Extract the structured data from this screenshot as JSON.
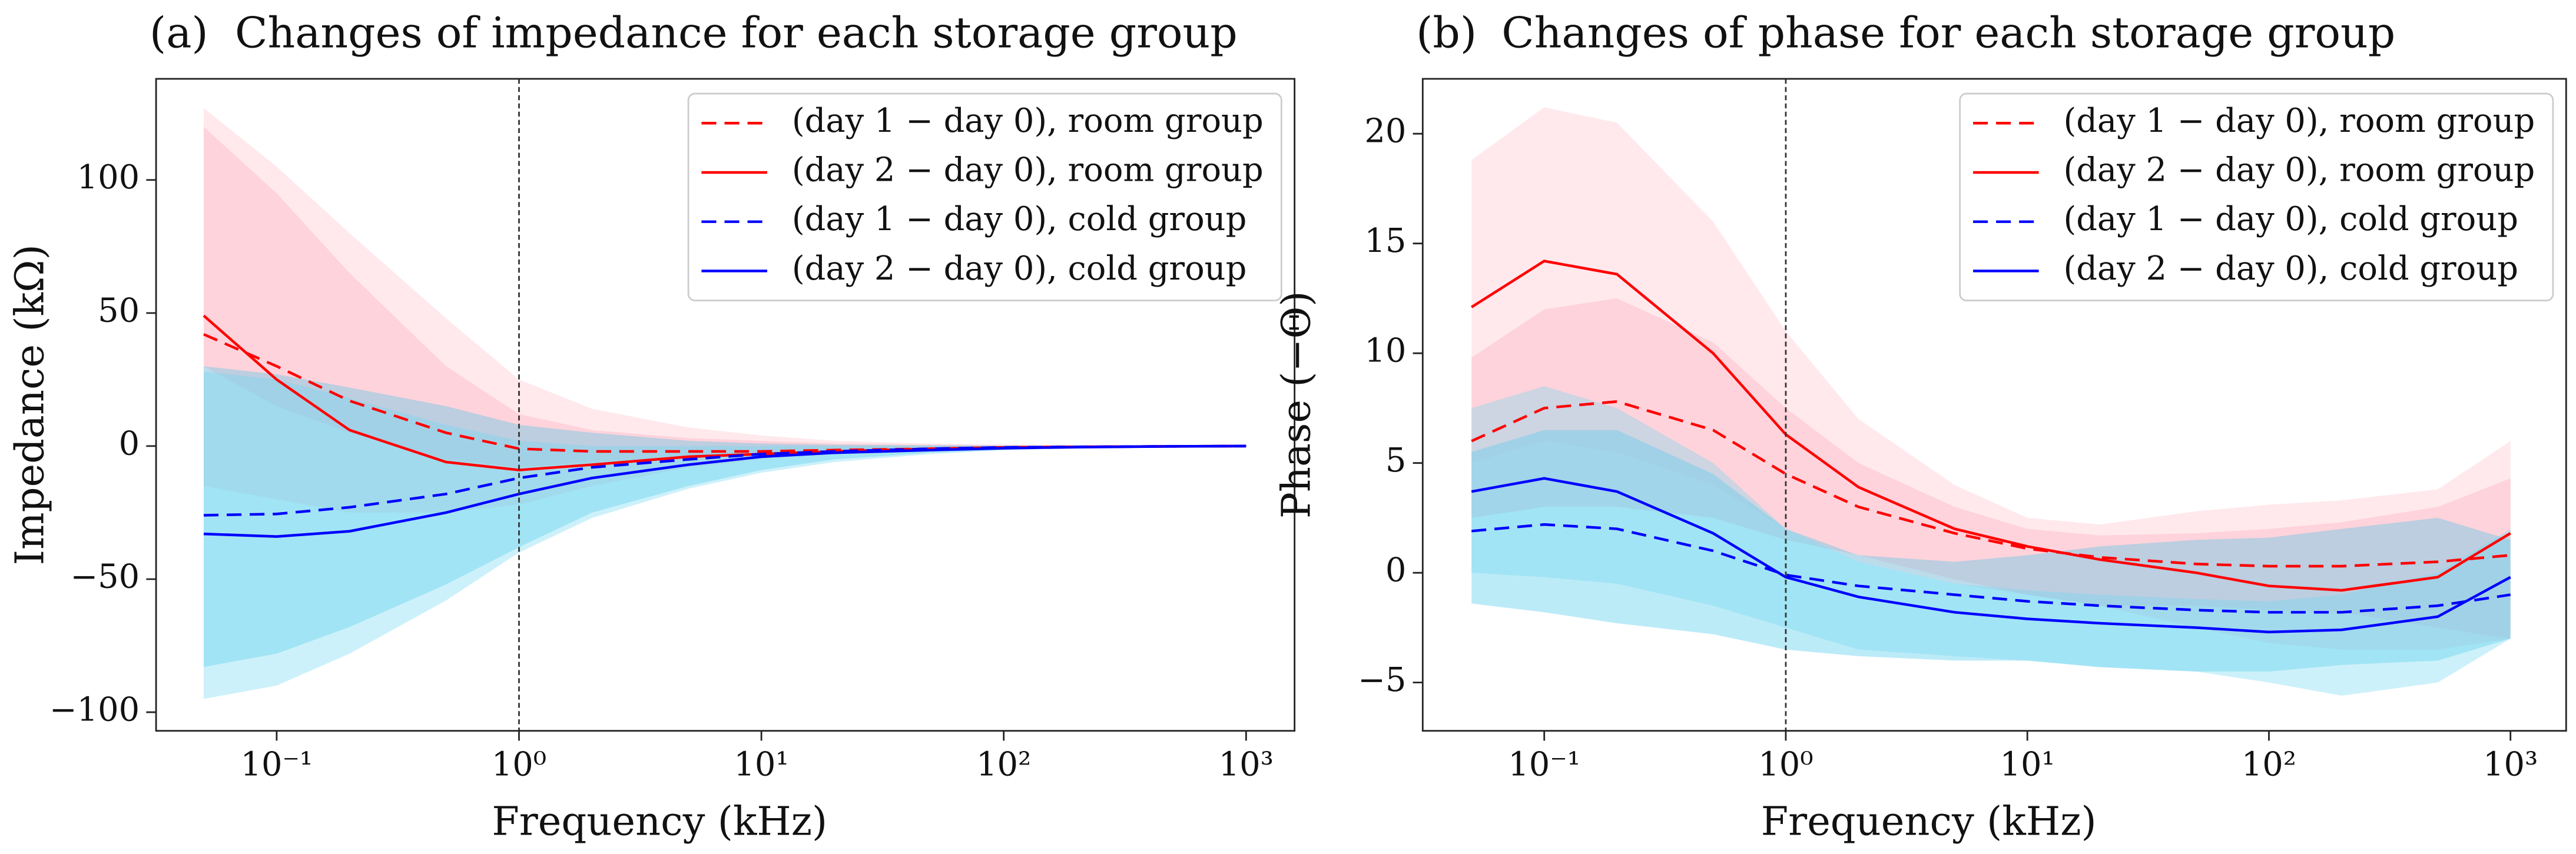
{
  "chart_data": [
    {
      "type": "line",
      "panel_label": "(a)",
      "title": "Changes of impedance for each storage group",
      "xlabel": "Frequency (kHz)",
      "ylabel": "Impedance (kΩ)",
      "xscale": "log",
      "x": [
        0.05,
        0.1,
        0.2,
        0.5,
        1,
        2,
        5,
        10,
        20,
        50,
        100,
        200,
        500,
        1000
      ],
      "xlim": [
        0.0318,
        1585
      ],
      "ylim": [
        -107,
        138
      ],
      "xticks": [
        {
          "value": 0.1,
          "label": "10⁻¹"
        },
        {
          "value": 1,
          "label": "10⁰"
        },
        {
          "value": 10,
          "label": "10¹"
        },
        {
          "value": 100,
          "label": "10²"
        },
        {
          "value": 1000,
          "label": "10³"
        }
      ],
      "yticks": [
        {
          "value": -100,
          "label": "−100"
        },
        {
          "value": -50,
          "label": "−50"
        },
        0,
        50,
        100
      ],
      "vline": 1,
      "legend_loc": "upper right",
      "series": [
        {
          "name": "(day 1 − day 0), room group",
          "color": "#ff0000",
          "linestyle": "dashed",
          "band_color": "#ff9fb2",
          "values": [
            42,
            30,
            17,
            5,
            -1,
            -2,
            -2,
            -2,
            -1.5,
            -1,
            -0.5,
            -0.3,
            -0.1,
            0
          ],
          "upper": [
            120,
            95,
            65,
            30,
            12,
            6,
            3,
            2,
            1,
            0.5,
            0.3,
            0.2,
            0.1,
            0
          ],
          "lower": [
            30,
            15,
            5,
            -5,
            -8,
            -6,
            -4,
            -3,
            -2,
            -1,
            -0.5,
            -0.3,
            -0.1,
            0
          ]
        },
        {
          "name": "(day 2 − day 0), room group",
          "color": "#ff0000",
          "linestyle": "solid",
          "band_color": "#ffc0cb",
          "values": [
            49,
            25,
            6,
            -6,
            -9,
            -7,
            -4,
            -3,
            -2,
            -1,
            -0.5,
            -0.3,
            -0.1,
            0
          ],
          "upper": [
            127,
            105,
            80,
            48,
            25,
            14,
            7,
            4,
            2,
            1,
            0.6,
            0.3,
            0.1,
            0
          ],
          "lower": [
            -15,
            -20,
            -25,
            -25,
            -22,
            -15,
            -8,
            -5,
            -3,
            -1.5,
            -0.8,
            -0.4,
            -0.1,
            0
          ]
        },
        {
          "name": "(day 1 − day 0), cold group",
          "color": "#0000ff",
          "linestyle": "dashed",
          "band_color": "#3fc6ea",
          "values": [
            -26,
            -25.5,
            -23,
            -18,
            -12,
            -8,
            -5,
            -3,
            -2,
            -1,
            -0.5,
            -0.3,
            -0.1,
            0
          ],
          "upper": [
            30,
            27,
            22,
            15,
            8,
            5,
            2,
            1,
            0.5,
            0.3,
            0.2,
            0.1,
            0,
            0
          ],
          "lower": [
            -83,
            -78,
            -68,
            -52,
            -38,
            -25,
            -15,
            -9,
            -5,
            -2.5,
            -1.5,
            -0.8,
            -0.2,
            0
          ]
        },
        {
          "name": "(day 2 − day 0), cold group",
          "color": "#0000ff",
          "linestyle": "solid",
          "band_color": "#6fd6f2",
          "values": [
            -33,
            -34,
            -32,
            -25,
            -18,
            -12,
            -7,
            -4,
            -2.5,
            -1.5,
            -0.8,
            -0.4,
            -0.1,
            0
          ],
          "upper": [
            28,
            25,
            18,
            8,
            2,
            0,
            0,
            0,
            0,
            0,
            0,
            0,
            0,
            0
          ],
          "lower": [
            -95,
            -90,
            -78,
            -58,
            -40,
            -27,
            -16,
            -10,
            -6,
            -3,
            -1.5,
            -0.8,
            -0.2,
            0
          ]
        }
      ]
    },
    {
      "type": "line",
      "panel_label": "(b)",
      "title": "Changes of phase for each storage group",
      "xlabel": "Frequency (kHz)",
      "ylabel": "Phase (−Θ)",
      "xscale": "log",
      "x": [
        0.05,
        0.1,
        0.2,
        0.5,
        1,
        2,
        5,
        10,
        20,
        50,
        100,
        200,
        500,
        1000
      ],
      "xlim": [
        0.0314,
        1700
      ],
      "ylim": [
        -7.2,
        22.5
      ],
      "xticks": [
        {
          "value": 0.1,
          "label": "10⁻¹"
        },
        {
          "value": 1,
          "label": "10⁰"
        },
        {
          "value": 10,
          "label": "10¹"
        },
        {
          "value": 100,
          "label": "10²"
        },
        {
          "value": 1000,
          "label": "10³"
        }
      ],
      "yticks": [
        {
          "value": -5,
          "label": "−5"
        },
        0,
        5,
        10,
        15,
        20
      ],
      "vline": 1,
      "legend_loc": "upper right",
      "series": [
        {
          "name": "(day 1 − day 0), room group",
          "color": "#ff0000",
          "linestyle": "dashed",
          "band_color": "#ff9fb2",
          "values": [
            6,
            7.5,
            7.8,
            6.5,
            4.5,
            3,
            1.8,
            1.1,
            0.7,
            0.4,
            0.3,
            0.3,
            0.5,
            0.8
          ],
          "upper": [
            9.8,
            12,
            12.5,
            10.5,
            7.5,
            5,
            3,
            2,
            1.7,
            1.8,
            2,
            2.3,
            3,
            4.3
          ],
          "lower": [
            2.5,
            3,
            3,
            2.5,
            1.5,
            0.8,
            -0.3,
            -1,
            -1.5,
            -1.5,
            -1.7,
            -1.8,
            -2.5,
            -3
          ]
        },
        {
          "name": "(day 2 − day 0), room group",
          "color": "#ff0000",
          "linestyle": "solid",
          "band_color": "#ffc0cb",
          "values": [
            12.1,
            14.2,
            13.6,
            10,
            6.3,
            3.9,
            2,
            1.2,
            0.6,
            0,
            -0.6,
            -0.8,
            -0.2,
            1.8
          ],
          "upper": [
            18.8,
            21.2,
            20.5,
            16,
            11,
            7,
            4,
            2.5,
            2.2,
            2.8,
            3.1,
            3.3,
            3.8,
            6
          ],
          "lower": [
            5,
            6,
            5.5,
            4,
            2,
            0.5,
            -0.5,
            -1,
            -1.5,
            -2.5,
            -3.2,
            -3.5,
            -3.5,
            -3
          ]
        },
        {
          "name": "(day 1 − day 0), cold group",
          "color": "#0000ff",
          "linestyle": "dashed",
          "band_color": "#3fc6ea",
          "values": [
            1.9,
            2.2,
            2,
            1,
            -0.1,
            -0.6,
            -1,
            -1.3,
            -1.5,
            -1.7,
            -1.8,
            -1.8,
            -1.5,
            -1
          ],
          "upper": [
            5.5,
            6.5,
            6.5,
            4.5,
            2,
            0.8,
            0.5,
            0.8,
            1.2,
            1.5,
            1.6,
            2,
            2.5,
            1.5
          ],
          "lower": [
            -1.4,
            -1.8,
            -2.3,
            -2.8,
            -3.5,
            -3.8,
            -4,
            -4,
            -4.3,
            -4.5,
            -4.5,
            -4.2,
            -4,
            -3
          ]
        },
        {
          "name": "(day 2 − day 0), cold group",
          "color": "#0000ff",
          "linestyle": "solid",
          "band_color": "#6fd6f2",
          "values": [
            3.7,
            4.3,
            3.7,
            1.8,
            -0.2,
            -1.1,
            -1.8,
            -2.1,
            -2.3,
            -2.5,
            -2.7,
            -2.6,
            -2,
            -0.2
          ],
          "upper": [
            7.5,
            8.5,
            7.5,
            5,
            2,
            0.5,
            -0.5,
            -0.8,
            -1,
            -1.2,
            -1.3,
            -1,
            0,
            2
          ],
          "lower": [
            0,
            -0.2,
            -0.5,
            -1.5,
            -2.5,
            -3.5,
            -3.8,
            -4,
            -4.3,
            -4.5,
            -5,
            -5.6,
            -5,
            -3
          ]
        }
      ]
    }
  ]
}
